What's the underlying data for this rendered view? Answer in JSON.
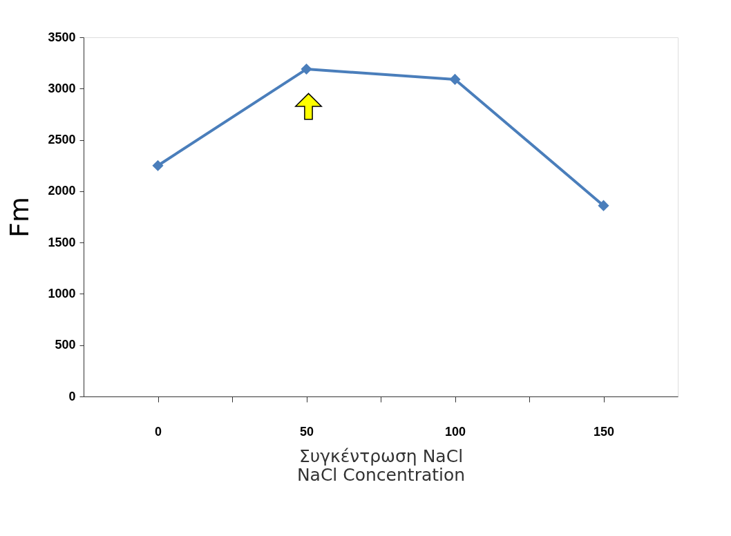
{
  "chart_data": {
    "type": "line",
    "x": [
      0,
      50,
      100,
      150
    ],
    "series": [
      {
        "color": "#4a7ebb",
        "values": [
          2250,
          3190,
          3090,
          1860
        ]
      }
    ],
    "xlabel": "Συγκέντρωση NaCl\nNaCl Concentration",
    "ylabel": "Fm",
    "xlim": [
      -25,
      175
    ],
    "xticks": [
      0,
      {
        "value": 25,
        "label": null
      },
      50,
      {
        "value": 75,
        "label": null
      },
      100,
      {
        "value": 125,
        "label": null
      },
      150
    ],
    "ylim": [
      0,
      3500
    ],
    "yticks": [
      0,
      500,
      1000,
      1500,
      2000,
      2500,
      3000,
      3500
    ],
    "marker": "diamond",
    "line_style": "solid",
    "grid": false
  }
}
